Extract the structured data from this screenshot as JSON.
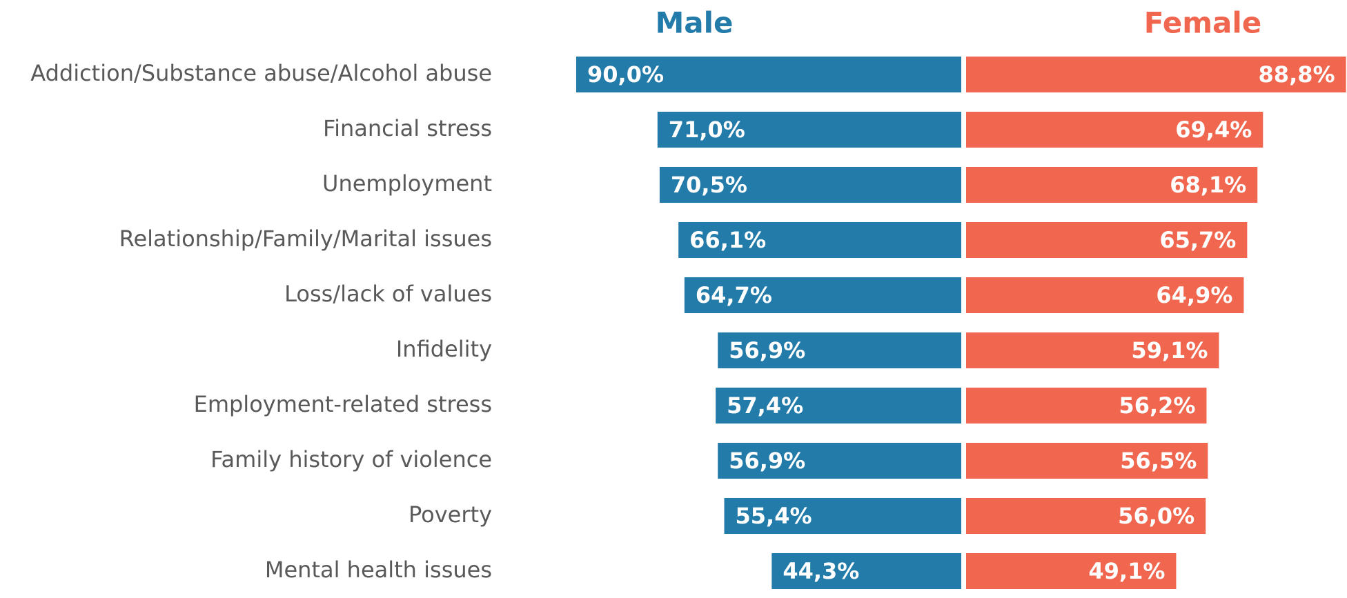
{
  "chart_data": {
    "type": "butterfly_bar",
    "categories": [
      "Addiction/Substance abuse/Alcohol abuse",
      "Financial stress",
      "Unemployment",
      "Relationship/Family/Marital issues",
      "Loss/lack of values",
      "Infidelity",
      "Employment-related stress",
      "Family history of violence",
      "Poverty",
      "Mental health issues"
    ],
    "series": [
      {
        "name": "Male",
        "color": "#237ba9",
        "values": [
          90.0,
          71.0,
          70.5,
          66.1,
          64.7,
          56.9,
          57.4,
          56.9,
          55.4,
          44.3
        ],
        "value_labels": [
          "90,0%",
          "71,0%",
          "70,5%",
          "66,1%",
          "64,7%",
          "56,9%",
          "57,4%",
          "56,9%",
          "55,4%",
          "44,3%"
        ]
      },
      {
        "name": "Female",
        "color": "#f0664e",
        "values": [
          88.8,
          69.4,
          68.1,
          65.7,
          64.9,
          59.1,
          56.2,
          56.5,
          56.0,
          49.1
        ],
        "value_labels": [
          "88,8%",
          "69,4%",
          "68,1%",
          "65,7%",
          "64,9%",
          "59,1%",
          "56,2%",
          "56,5%",
          "56,0%",
          "49,1%"
        ]
      }
    ]
  }
}
